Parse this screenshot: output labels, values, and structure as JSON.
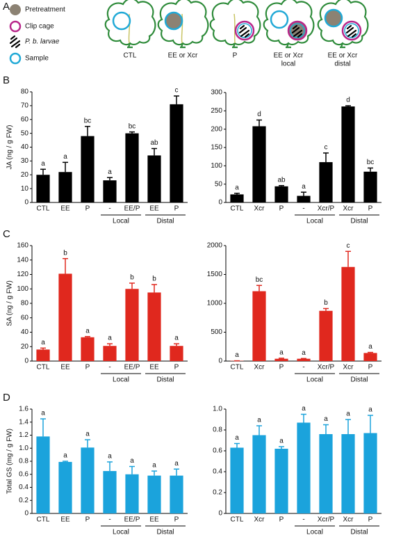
{
  "diagram": {
    "panel": "A",
    "legend": [
      "Pretreatment",
      "Clip cage",
      "P. b. larvae",
      "Sample"
    ],
    "captions": [
      [
        "CTL"
      ],
      [
        "EE or Xcr"
      ],
      [
        "P"
      ],
      [
        "EE or Xcr",
        "local"
      ],
      [
        "EE or Xcr",
        "distal"
      ]
    ]
  },
  "chart_data": [
    {
      "type": "bar",
      "panel": "B",
      "ylabel": "JA (ng / g FW)",
      "color": "#000000",
      "categories": [
        "CTL",
        "EE",
        "P",
        "-",
        "EE/P",
        "EE",
        "P"
      ],
      "group_labels": [
        "Local",
        "Distal"
      ],
      "values": [
        20,
        22,
        48,
        16,
        50,
        34,
        71
      ],
      "errors": [
        4,
        7,
        7,
        2,
        1,
        5,
        6
      ],
      "annotations": [
        "a",
        "a",
        "bc",
        "a",
        "bc",
        "ab",
        "c"
      ],
      "ylim": [
        0,
        80
      ],
      "yticks": [
        0,
        10,
        20,
        30,
        40,
        50,
        60,
        70,
        80
      ]
    },
    {
      "type": "bar",
      "color": "#000000",
      "categories": [
        "CTL",
        "Xcr",
        "P",
        "-",
        "Xcr/P",
        "Xcr",
        "P"
      ],
      "group_labels": [
        "Local",
        "Distal"
      ],
      "values": [
        22,
        208,
        44,
        18,
        110,
        262,
        84
      ],
      "errors": [
        3,
        17,
        2,
        10,
        25,
        2,
        10
      ],
      "annotations": [
        "a",
        "d",
        "ab",
        "a",
        "c",
        "d",
        "bc"
      ],
      "ylim": [
        0,
        300
      ],
      "yticks": [
        0,
        50,
        100,
        150,
        200,
        250,
        300
      ]
    },
    {
      "type": "bar",
      "panel": "C",
      "ylabel": "SA (ng / g FW)",
      "color": "#e0281e",
      "categories": [
        "CTL",
        "EE",
        "P",
        "-",
        "EE/P",
        "EE",
        "P"
      ],
      "group_labels": [
        "Local",
        "Distal"
      ],
      "values": [
        16,
        121,
        33,
        21,
        100,
        95,
        21
      ],
      "errors": [
        2,
        21,
        1,
        3,
        8,
        11,
        3
      ],
      "annotations": [
        "a",
        "b",
        "a",
        "a",
        "b",
        "b",
        "a"
      ],
      "ylim": [
        0,
        160
      ],
      "yticks": [
        0,
        20,
        40,
        60,
        80,
        100,
        120,
        140,
        160
      ]
    },
    {
      "type": "bar",
      "color": "#e0281e",
      "categories": [
        "CTL",
        "Xcr",
        "P",
        "-",
        "Xcr/P",
        "Xcr",
        "P"
      ],
      "group_labels": [
        "Local",
        "Distal"
      ],
      "values": [
        5,
        1210,
        40,
        40,
        870,
        1630,
        140
      ],
      "errors": [
        0,
        100,
        10,
        5,
        40,
        270,
        10
      ],
      "annotations": [
        "a",
        "bc",
        "a",
        "a",
        "b",
        "c",
        "a"
      ],
      "ylim": [
        0,
        2000
      ],
      "yticks": [
        0,
        500,
        1000,
        1500,
        2000
      ]
    },
    {
      "type": "bar",
      "panel": "D",
      "ylabel": "Total GS (mg / g FW)",
      "color": "#1ba3dc",
      "categories": [
        "CTL",
        "EE",
        "P",
        "-",
        "EE/P",
        "EE",
        "P"
      ],
      "group_labels": [
        "Local",
        "Distal"
      ],
      "values": [
        1.18,
        0.79,
        1.01,
        0.65,
        0.6,
        0.58,
        0.58
      ],
      "errors": [
        0.27,
        0.01,
        0.12,
        0.14,
        0.12,
        0.07,
        0.1
      ],
      "annotations": [
        "a",
        "a",
        "a",
        "a",
        "a",
        "a",
        "a"
      ],
      "ylim": [
        0,
        1.6
      ],
      "yticks": [
        0,
        0.2,
        0.4,
        0.6,
        0.8,
        {
          "value": 1,
          "label": "1.0"
        },
        1.2,
        1.4,
        1.6
      ]
    },
    {
      "type": "bar",
      "color": "#1ba3dc",
      "categories": [
        "CTL",
        "Xcr",
        "P",
        "-",
        "Xcr/P",
        "Xcr",
        "P"
      ],
      "group_labels": [
        "Local",
        "Distal"
      ],
      "values": [
        0.63,
        0.75,
        0.62,
        0.87,
        0.76,
        0.76,
        0.77
      ],
      "errors": [
        0.04,
        0.09,
        0.02,
        0.08,
        0.09,
        0.14,
        0.17
      ],
      "annotations": [
        "a",
        "a",
        "a",
        "a",
        "a",
        "a",
        "a"
      ],
      "ylim": [
        0,
        1
      ],
      "yticks": [
        0,
        0.2,
        0.4,
        0.6,
        0.8,
        {
          "value": 1,
          "label": "1.0"
        }
      ]
    }
  ]
}
